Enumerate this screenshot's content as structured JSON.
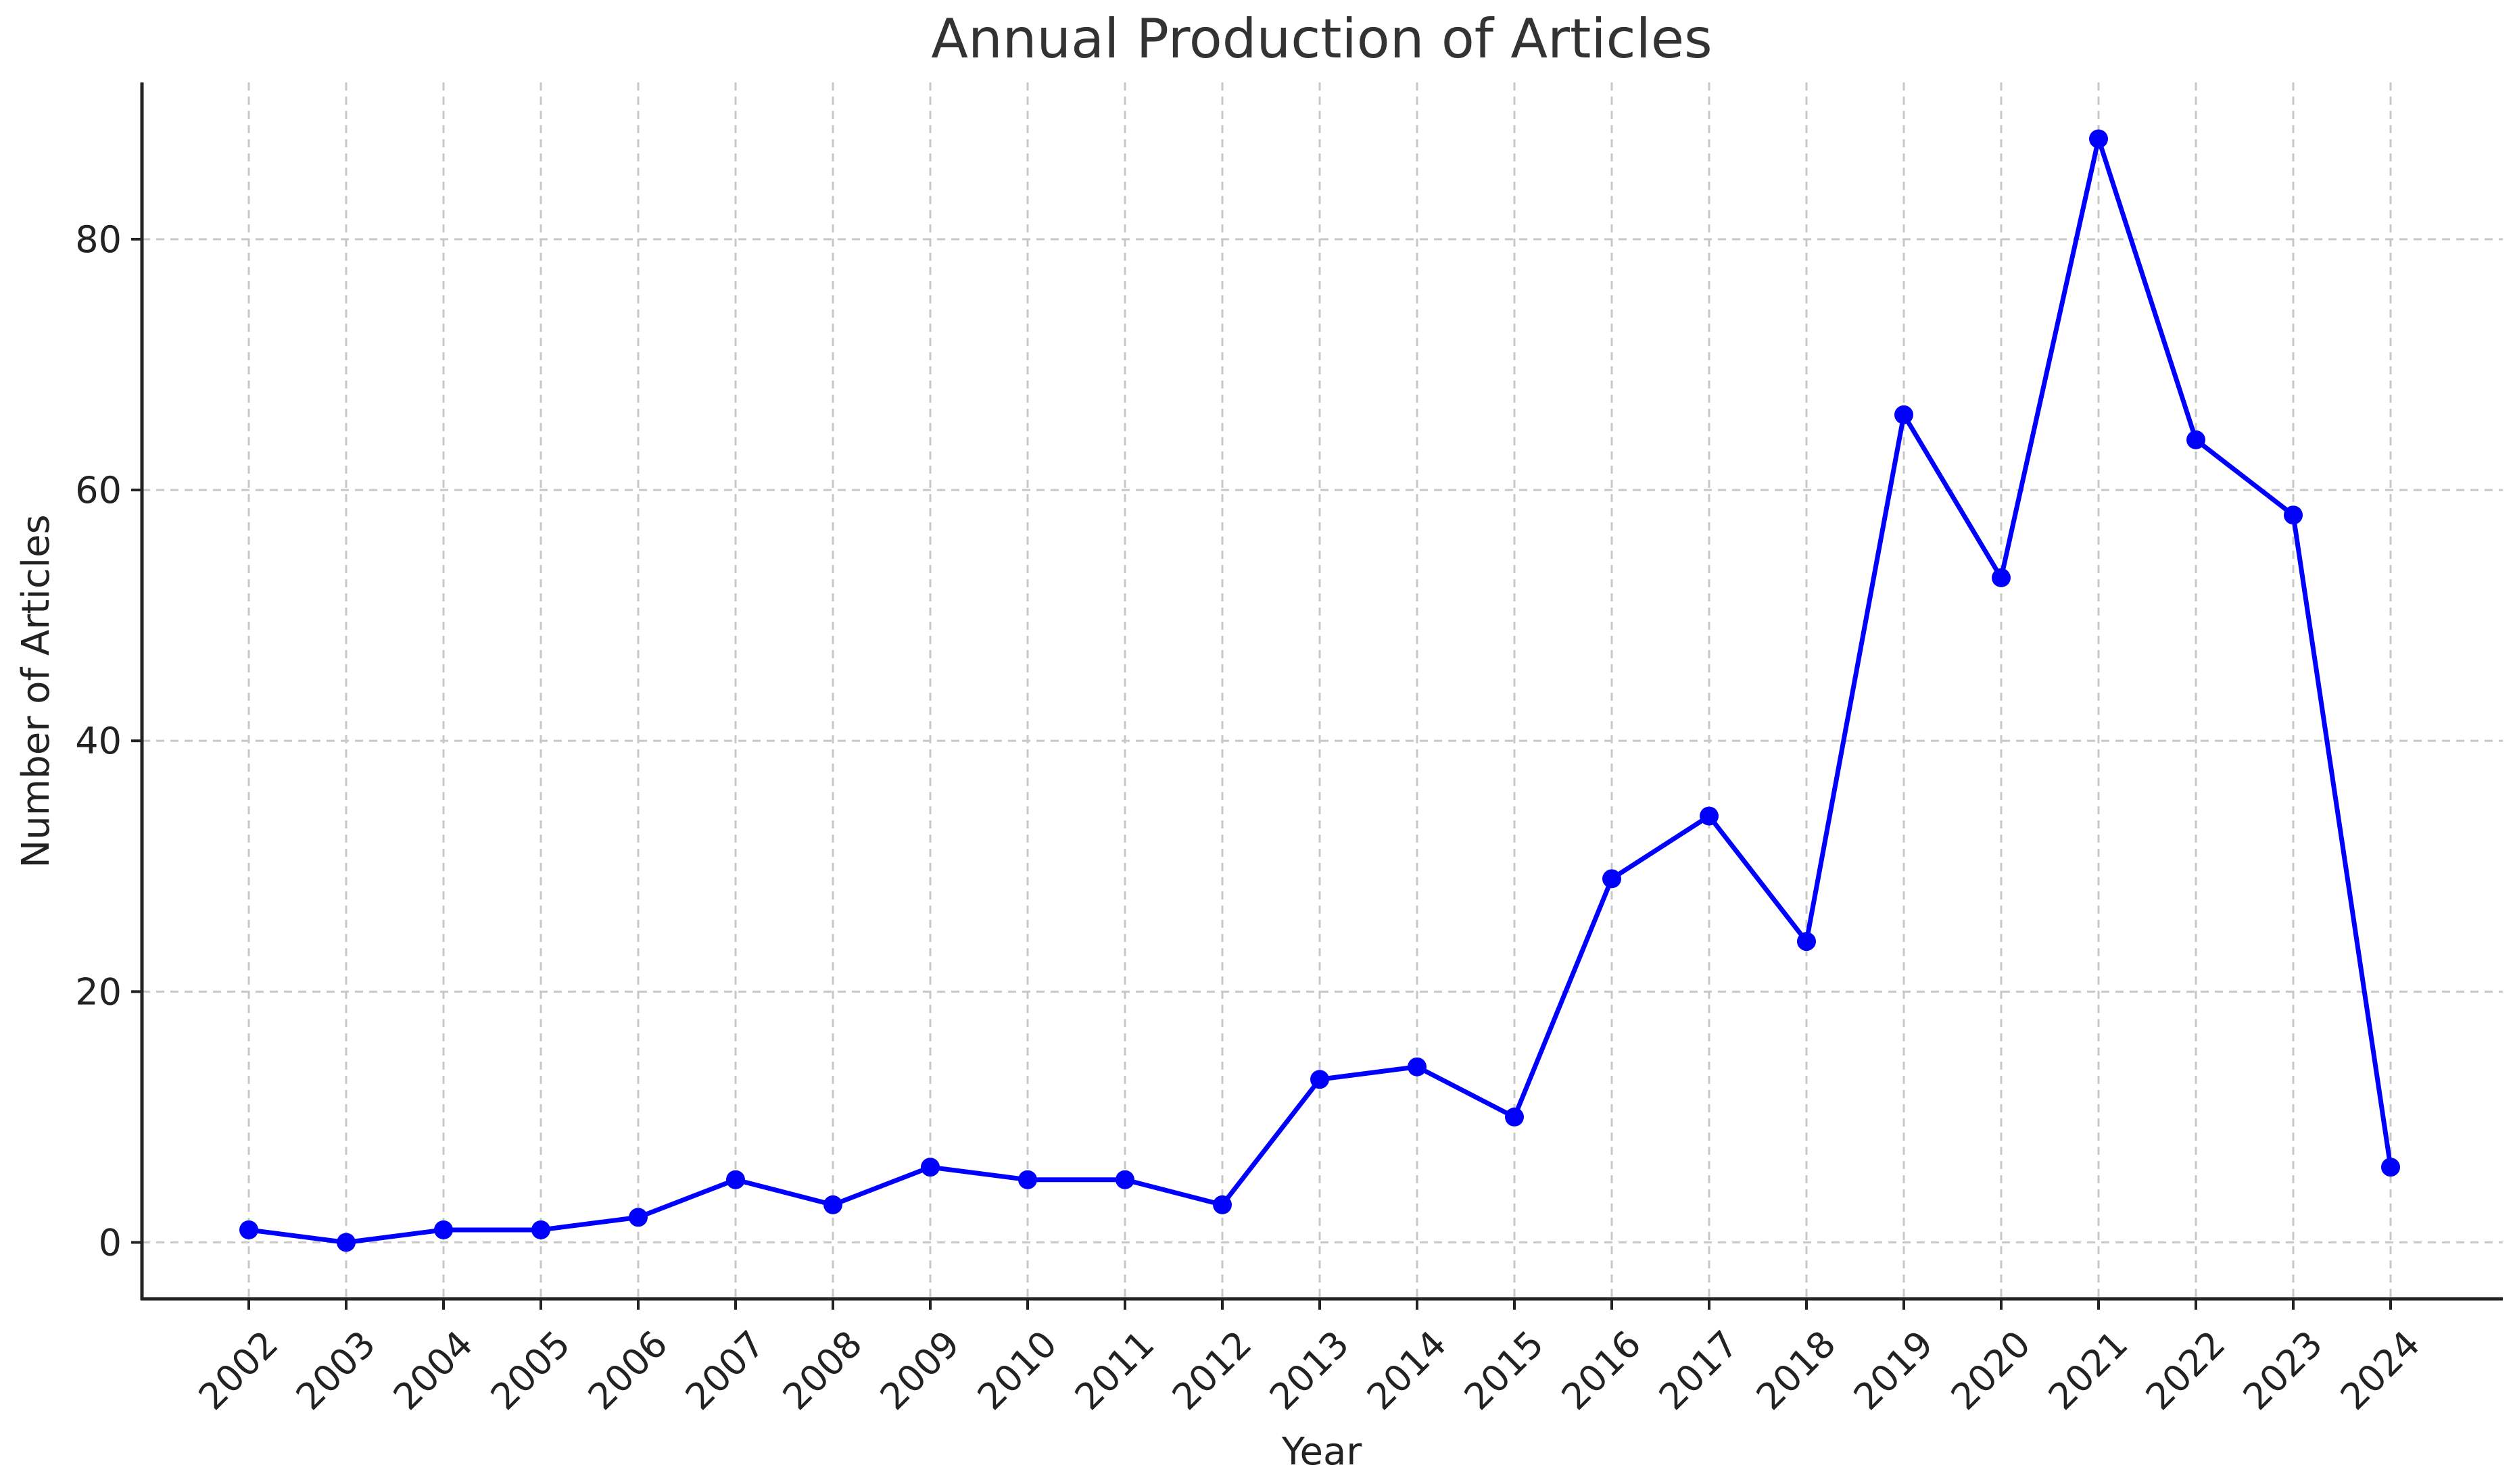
{
  "chart_data": {
    "type": "line",
    "title": "Annual Production of Articles",
    "xlabel": "Year",
    "ylabel": "Number of Articles",
    "ylim": [
      -4.5,
      92.5
    ],
    "yticks": [
      0,
      20,
      40,
      60,
      80
    ],
    "grid": true,
    "categories": [
      "2002",
      "2003",
      "2004",
      "2005",
      "2006",
      "2007",
      "2008",
      "2009",
      "2010",
      "2011",
      "2012",
      "2013",
      "2014",
      "2015",
      "2016",
      "2017",
      "2018",
      "2019",
      "2020",
      "2021",
      "2022",
      "2023",
      "2024"
    ],
    "series": [
      {
        "color": "#0000ff",
        "values": [
          1,
          0,
          1,
          1,
          2,
          5,
          3,
          6,
          5,
          5,
          3,
          13,
          14,
          10,
          29,
          34,
          24,
          66,
          53,
          88,
          64,
          58,
          6
        ]
      }
    ]
  }
}
